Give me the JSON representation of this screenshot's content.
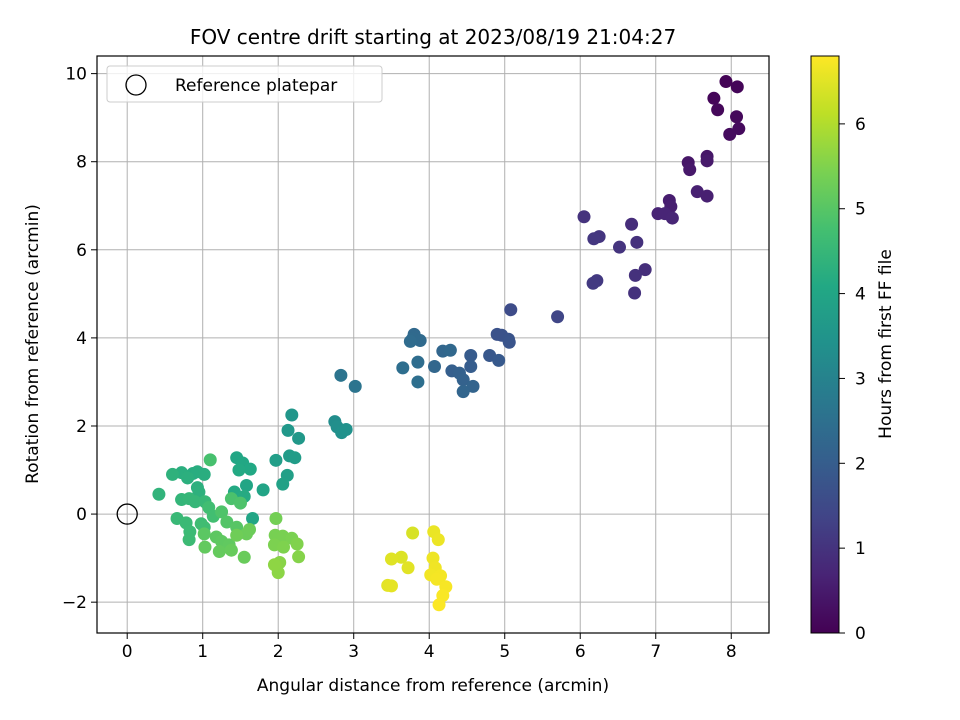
{
  "chart_data": {
    "type": "scatter",
    "title": "FOV centre drift starting at 2023/08/19 21:04:27",
    "xlabel": "Angular distance from reference (arcmin)",
    "ylabel": "Rotation from reference (arcmin)",
    "xlim": [
      -0.4,
      8.5
    ],
    "ylim": [
      -2.7,
      10.4
    ],
    "xticks": [
      0,
      1,
      2,
      3,
      4,
      5,
      6,
      7,
      8
    ],
    "yticks": [
      -2,
      0,
      2,
      4,
      6,
      8,
      10
    ],
    "grid": true,
    "legend": {
      "placement": "top-left",
      "entries": [
        "Reference platepar"
      ]
    },
    "reference_point": {
      "x": 0,
      "y": 0,
      "label": "Reference platepar"
    },
    "colorbar": {
      "label": "Hours from first FF file",
      "range": [
        0,
        6.8
      ],
      "ticks": [
        0,
        1,
        2,
        3,
        4,
        5,
        6
      ],
      "colormap": "viridis"
    },
    "points": [
      {
        "x": 7.93,
        "y": 9.82,
        "t": 0.05
      },
      {
        "x": 8.08,
        "y": 9.7,
        "t": 0.08
      },
      {
        "x": 7.77,
        "y": 9.44,
        "t": 0.1
      },
      {
        "x": 7.82,
        "y": 9.18,
        "t": 0.13
      },
      {
        "x": 8.07,
        "y": 9.02,
        "t": 0.15
      },
      {
        "x": 8.1,
        "y": 8.75,
        "t": 0.18
      },
      {
        "x": 7.98,
        "y": 8.62,
        "t": 0.2
      },
      {
        "x": 7.43,
        "y": 7.98,
        "t": 0.4
      },
      {
        "x": 7.45,
        "y": 7.82,
        "t": 0.45
      },
      {
        "x": 7.68,
        "y": 8.12,
        "t": 0.42
      },
      {
        "x": 7.68,
        "y": 8.02,
        "t": 0.48
      },
      {
        "x": 7.18,
        "y": 7.12,
        "t": 0.55
      },
      {
        "x": 7.2,
        "y": 6.98,
        "t": 0.58
      },
      {
        "x": 7.55,
        "y": 7.32,
        "t": 0.62
      },
      {
        "x": 7.68,
        "y": 7.22,
        "t": 0.6
      },
      {
        "x": 7.03,
        "y": 6.82,
        "t": 0.68
      },
      {
        "x": 7.12,
        "y": 6.82,
        "t": 0.7
      },
      {
        "x": 7.22,
        "y": 6.72,
        "t": 0.72
      },
      {
        "x": 6.05,
        "y": 6.75,
        "t": 1.0
      },
      {
        "x": 6.68,
        "y": 6.58,
        "t": 0.88
      },
      {
        "x": 6.75,
        "y": 6.17,
        "t": 0.95
      },
      {
        "x": 6.25,
        "y": 6.3,
        "t": 1.05
      },
      {
        "x": 6.18,
        "y": 6.25,
        "t": 1.08
      },
      {
        "x": 6.52,
        "y": 6.06,
        "t": 1.02
      },
      {
        "x": 6.86,
        "y": 5.55,
        "t": 0.92
      },
      {
        "x": 6.73,
        "y": 5.42,
        "t": 0.96
      },
      {
        "x": 6.22,
        "y": 5.3,
        "t": 1.12
      },
      {
        "x": 6.17,
        "y": 5.24,
        "t": 1.15
      },
      {
        "x": 6.72,
        "y": 5.02,
        "t": 0.98
      },
      {
        "x": 5.7,
        "y": 4.48,
        "t": 1.4
      },
      {
        "x": 5.08,
        "y": 4.64,
        "t": 1.55
      },
      {
        "x": 4.9,
        "y": 4.08,
        "t": 1.7
      },
      {
        "x": 4.96,
        "y": 4.06,
        "t": 1.72
      },
      {
        "x": 5.05,
        "y": 3.97,
        "t": 1.74
      },
      {
        "x": 5.06,
        "y": 3.9,
        "t": 1.76
      },
      {
        "x": 4.8,
        "y": 3.6,
        "t": 1.85
      },
      {
        "x": 4.92,
        "y": 3.49,
        "t": 1.9
      },
      {
        "x": 4.55,
        "y": 3.6,
        "t": 1.95
      },
      {
        "x": 4.55,
        "y": 3.35,
        "t": 2.0
      },
      {
        "x": 4.3,
        "y": 3.25,
        "t": 2.05
      },
      {
        "x": 4.4,
        "y": 3.2,
        "t": 2.1
      },
      {
        "x": 4.45,
        "y": 3.05,
        "t": 2.12
      },
      {
        "x": 4.58,
        "y": 2.9,
        "t": 2.18
      },
      {
        "x": 4.45,
        "y": 2.78,
        "t": 2.2
      },
      {
        "x": 4.07,
        "y": 3.35,
        "t": 2.25
      },
      {
        "x": 4.18,
        "y": 3.7,
        "t": 2.22
      },
      {
        "x": 4.28,
        "y": 3.72,
        "t": 2.28
      },
      {
        "x": 3.8,
        "y": 4.08,
        "t": 2.3
      },
      {
        "x": 3.78,
        "y": 3.98,
        "t": 2.33
      },
      {
        "x": 3.88,
        "y": 3.94,
        "t": 2.35
      },
      {
        "x": 3.75,
        "y": 3.92,
        "t": 2.38
      },
      {
        "x": 3.85,
        "y": 3.45,
        "t": 2.42
      },
      {
        "x": 3.65,
        "y": 3.32,
        "t": 2.45
      },
      {
        "x": 3.85,
        "y": 3.0,
        "t": 2.48
      },
      {
        "x": 3.02,
        "y": 2.9,
        "t": 2.6
      },
      {
        "x": 2.83,
        "y": 3.15,
        "t": 2.62
      },
      {
        "x": 2.75,
        "y": 2.1,
        "t": 3.3
      },
      {
        "x": 2.78,
        "y": 1.98,
        "t": 3.35
      },
      {
        "x": 2.84,
        "y": 1.85,
        "t": 3.4
      },
      {
        "x": 2.9,
        "y": 1.92,
        "t": 3.42
      },
      {
        "x": 2.18,
        "y": 2.25,
        "t": 3.55
      },
      {
        "x": 2.13,
        "y": 1.9,
        "t": 3.6
      },
      {
        "x": 2.27,
        "y": 1.72,
        "t": 3.62
      },
      {
        "x": 2.15,
        "y": 1.32,
        "t": 3.7
      },
      {
        "x": 2.22,
        "y": 1.28,
        "t": 3.72
      },
      {
        "x": 1.97,
        "y": 1.22,
        "t": 3.78
      },
      {
        "x": 2.12,
        "y": 0.88,
        "t": 3.82
      },
      {
        "x": 2.06,
        "y": 0.68,
        "t": 3.88
      },
      {
        "x": 1.8,
        "y": 0.55,
        "t": 3.95
      },
      {
        "x": 1.66,
        "y": -0.1,
        "t": 3.98
      },
      {
        "x": 1.58,
        "y": 0.65,
        "t": 4.0
      },
      {
        "x": 1.45,
        "y": 1.28,
        "t": 4.02
      },
      {
        "x": 1.53,
        "y": 1.16,
        "t": 4.05
      },
      {
        "x": 1.63,
        "y": 1.02,
        "t": 4.08
      },
      {
        "x": 1.48,
        "y": 1.0,
        "t": 4.1
      },
      {
        "x": 1.42,
        "y": 0.5,
        "t": 4.12
      },
      {
        "x": 1.55,
        "y": 0.4,
        "t": 4.15
      },
      {
        "x": 0.87,
        "y": 0.92,
        "t": 4.2
      },
      {
        "x": 0.93,
        "y": 0.96,
        "t": 4.22
      },
      {
        "x": 1.02,
        "y": 0.9,
        "t": 4.24
      },
      {
        "x": 0.72,
        "y": 0.94,
        "t": 4.26
      },
      {
        "x": 0.8,
        "y": 0.82,
        "t": 4.28
      },
      {
        "x": 0.93,
        "y": 0.6,
        "t": 4.3
      },
      {
        "x": 0.95,
        "y": 0.5,
        "t": 4.32
      },
      {
        "x": 0.6,
        "y": 0.9,
        "t": 4.34
      },
      {
        "x": 0.42,
        "y": 0.45,
        "t": 4.4
      },
      {
        "x": 0.72,
        "y": 0.33,
        "t": 4.45
      },
      {
        "x": 0.82,
        "y": 0.35,
        "t": 4.48
      },
      {
        "x": 0.9,
        "y": 0.28,
        "t": 4.5
      },
      {
        "x": 1.03,
        "y": 0.28,
        "t": 4.52
      },
      {
        "x": 0.66,
        "y": -0.1,
        "t": 4.55
      },
      {
        "x": 0.78,
        "y": -0.2,
        "t": 4.58
      },
      {
        "x": 0.83,
        "y": -0.4,
        "t": 4.6
      },
      {
        "x": 0.82,
        "y": -0.58,
        "t": 4.62
      },
      {
        "x": 0.98,
        "y": -0.22,
        "t": 4.65
      },
      {
        "x": 1.02,
        "y": -0.3,
        "t": 4.68
      },
      {
        "x": 1.08,
        "y": 0.15,
        "t": 4.7
      },
      {
        "x": 1.14,
        "y": -0.05,
        "t": 4.72
      },
      {
        "x": 1.1,
        "y": 1.23,
        "t": 4.8
      },
      {
        "x": 1.38,
        "y": 0.35,
        "t": 4.85
      },
      {
        "x": 1.5,
        "y": 0.25,
        "t": 4.88
      },
      {
        "x": 1.25,
        "y": 0.05,
        "t": 4.9
      },
      {
        "x": 1.32,
        "y": -0.18,
        "t": 4.95
      },
      {
        "x": 1.45,
        "y": -0.3,
        "t": 5.0
      },
      {
        "x": 1.02,
        "y": -0.45,
        "t": 5.05
      },
      {
        "x": 1.18,
        "y": -0.52,
        "t": 5.08
      },
      {
        "x": 1.25,
        "y": -0.62,
        "t": 5.1
      },
      {
        "x": 1.35,
        "y": -0.7,
        "t": 5.12
      },
      {
        "x": 1.03,
        "y": -0.75,
        "t": 5.15
      },
      {
        "x": 1.22,
        "y": -0.85,
        "t": 5.18
      },
      {
        "x": 1.38,
        "y": -0.82,
        "t": 5.2
      },
      {
        "x": 1.55,
        "y": -0.98,
        "t": 5.22
      },
      {
        "x": 1.58,
        "y": -0.45,
        "t": 5.25
      },
      {
        "x": 1.62,
        "y": -0.35,
        "t": 5.27
      },
      {
        "x": 1.45,
        "y": -0.48,
        "t": 5.3
      },
      {
        "x": 1.97,
        "y": -0.1,
        "t": 5.35
      },
      {
        "x": 1.96,
        "y": -0.48,
        "t": 5.4
      },
      {
        "x": 2.06,
        "y": -0.5,
        "t": 5.42
      },
      {
        "x": 2.18,
        "y": -0.55,
        "t": 5.44
      },
      {
        "x": 1.95,
        "y": -0.7,
        "t": 5.46
      },
      {
        "x": 2.07,
        "y": -0.75,
        "t": 5.48
      },
      {
        "x": 2.25,
        "y": -0.68,
        "t": 5.5
      },
      {
        "x": 2.27,
        "y": -0.97,
        "t": 5.55
      },
      {
        "x": 2.02,
        "y": -1.1,
        "t": 5.58
      },
      {
        "x": 1.98,
        "y": -1.18,
        "t": 5.6
      },
      {
        "x": 2.0,
        "y": -1.33,
        "t": 5.62
      },
      {
        "x": 1.95,
        "y": -1.15,
        "t": 5.64
      },
      {
        "x": 3.78,
        "y": -0.43,
        "t": 6.4
      },
      {
        "x": 3.63,
        "y": -0.98,
        "t": 6.45
      },
      {
        "x": 3.5,
        "y": -1.02,
        "t": 6.48
      },
      {
        "x": 3.72,
        "y": -1.22,
        "t": 6.5
      },
      {
        "x": 3.45,
        "y": -1.62,
        "t": 6.52
      },
      {
        "x": 3.5,
        "y": -1.63,
        "t": 6.54
      },
      {
        "x": 4.06,
        "y": -0.4,
        "t": 6.6
      },
      {
        "x": 4.12,
        "y": -0.58,
        "t": 6.62
      },
      {
        "x": 4.05,
        "y": -1.0,
        "t": 6.64
      },
      {
        "x": 4.08,
        "y": -1.22,
        "t": 6.66
      },
      {
        "x": 4.02,
        "y": -1.38,
        "t": 6.68
      },
      {
        "x": 4.15,
        "y": -1.4,
        "t": 6.7
      },
      {
        "x": 4.1,
        "y": -1.48,
        "t": 6.72
      },
      {
        "x": 4.22,
        "y": -1.65,
        "t": 6.74
      },
      {
        "x": 4.18,
        "y": -1.85,
        "t": 6.76
      },
      {
        "x": 4.13,
        "y": -2.06,
        "t": 6.78
      }
    ]
  }
}
